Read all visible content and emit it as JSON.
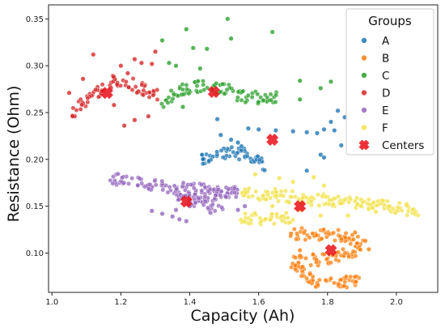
{
  "chart_data": {
    "type": "scatter",
    "title": "",
    "xlabel": "Capacity (Ah)",
    "ylabel": "Resistance (Ohm)",
    "xlim": [
      0.99,
      2.12
    ],
    "ylim": [
      0.058,
      0.365
    ],
    "xticks": [
      1.0,
      1.2,
      1.4,
      1.6,
      1.8,
      2.0
    ],
    "yticks": [
      0.1,
      0.15,
      0.2,
      0.25,
      0.3,
      0.35
    ],
    "xtick_labels": [
      "1.0",
      "1.2",
      "1.4",
      "1.6",
      "1.8",
      "2.0"
    ],
    "ytick_labels": [
      "0.10",
      "0.15",
      "0.20",
      "0.25",
      "0.30",
      "0.35"
    ],
    "grid": false,
    "legend": {
      "title": "Groups",
      "placement": "top-right"
    },
    "series": [
      {
        "name": "A",
        "color": "#1f77b4",
        "trend": [
          [
            1.43,
            0.198
          ],
          [
            1.48,
            0.207
          ],
          [
            1.54,
            0.207
          ],
          [
            1.59,
            0.203
          ],
          [
            1.62,
            0.188
          ]
        ],
        "points": [
          [
            1.48,
            0.243
          ],
          [
            1.49,
            0.226
          ],
          [
            1.52,
            0.221
          ],
          [
            1.54,
            0.218
          ],
          [
            1.55,
            0.214
          ],
          [
            1.57,
            0.233
          ],
          [
            1.6,
            0.232
          ],
          [
            1.65,
            0.231
          ],
          [
            1.7,
            0.23
          ],
          [
            1.74,
            0.229
          ],
          [
            1.77,
            0.228
          ],
          [
            1.79,
            0.232
          ],
          [
            1.81,
            0.24
          ],
          [
            1.83,
            0.252
          ],
          [
            1.74,
            0.188
          ],
          [
            1.78,
            0.205
          ],
          [
            1.79,
            0.202
          ],
          [
            1.84,
            0.215
          ],
          [
            1.82,
            0.231
          ],
          [
            1.85,
            0.245
          ]
        ]
      },
      {
        "name": "B",
        "color": "#ff7f0e",
        "trend": [
          [
            1.69,
            0.121
          ],
          [
            1.78,
            0.12
          ],
          [
            1.85,
            0.118
          ],
          [
            1.9,
            0.11
          ],
          [
            1.87,
            0.1
          ],
          [
            1.78,
            0.093
          ],
          [
            1.7,
            0.091
          ],
          [
            1.76,
            0.069
          ],
          [
            1.86,
            0.069
          ],
          [
            1.9,
            0.071
          ]
        ],
        "points": [
          [
            1.72,
            0.103
          ],
          [
            1.72,
            0.097
          ],
          [
            1.92,
            0.104
          ],
          [
            1.91,
            0.113
          ],
          [
            1.88,
            0.122
          ]
        ]
      },
      {
        "name": "C",
        "color": "#2ca02c",
        "trend": [
          [
            1.32,
            0.262
          ],
          [
            1.38,
            0.274
          ],
          [
            1.44,
            0.279
          ],
          [
            1.5,
            0.275
          ],
          [
            1.55,
            0.268
          ],
          [
            1.6,
            0.266
          ],
          [
            1.66,
            0.266
          ]
        ],
        "points": [
          [
            1.32,
            0.327
          ],
          [
            1.34,
            0.303
          ],
          [
            1.36,
            0.3
          ],
          [
            1.39,
            0.339
          ],
          [
            1.41,
            0.319
          ],
          [
            1.43,
            0.297
          ],
          [
            1.45,
            0.318
          ],
          [
            1.51,
            0.35
          ],
          [
            1.52,
            0.329
          ],
          [
            1.64,
            0.336
          ],
          [
            1.72,
            0.284
          ],
          [
            1.78,
            0.276
          ],
          [
            1.81,
            0.283
          ],
          [
            1.72,
            0.264
          ],
          [
            1.38,
            0.256
          ]
        ]
      },
      {
        "name": "D",
        "color": "#d62728",
        "trend": [
          [
            1.06,
            0.25
          ],
          [
            1.1,
            0.262
          ],
          [
            1.14,
            0.275
          ],
          [
            1.18,
            0.283
          ],
          [
            1.22,
            0.282
          ],
          [
            1.26,
            0.276
          ],
          [
            1.31,
            0.268
          ]
        ],
        "points": [
          [
            1.05,
            0.271
          ],
          [
            1.06,
            0.246
          ],
          [
            1.09,
            0.286
          ],
          [
            1.12,
            0.312
          ],
          [
            1.18,
            0.258
          ],
          [
            1.2,
            0.3
          ],
          [
            1.22,
            0.292
          ],
          [
            1.24,
            0.307
          ],
          [
            1.26,
            0.303
          ],
          [
            1.29,
            0.302
          ],
          [
            1.3,
            0.315
          ],
          [
            1.21,
            0.236
          ],
          [
            1.24,
            0.242
          ],
          [
            1.28,
            0.246
          ]
        ]
      },
      {
        "name": "E",
        "color": "#9467bd",
        "trend": [
          [
            1.17,
            0.18
          ],
          [
            1.24,
            0.175
          ],
          [
            1.32,
            0.171
          ],
          [
            1.4,
            0.169
          ],
          [
            1.48,
            0.166
          ],
          [
            1.54,
            0.165
          ],
          [
            1.36,
            0.158
          ],
          [
            1.44,
            0.154
          ],
          [
            1.5,
            0.15
          ]
        ],
        "points": [
          [
            1.29,
            0.145
          ],
          [
            1.32,
            0.142
          ],
          [
            1.35,
            0.139
          ],
          [
            1.37,
            0.136
          ],
          [
            1.39,
            0.134
          ],
          [
            1.36,
            0.146
          ],
          [
            1.4,
            0.15
          ],
          [
            1.46,
            0.143
          ],
          [
            1.54,
            0.146
          ],
          [
            1.56,
            0.15
          ]
        ]
      },
      {
        "name": "F",
        "color": "#f2e24a",
        "trend": [
          [
            1.55,
            0.163
          ],
          [
            1.64,
            0.162
          ],
          [
            1.74,
            0.158
          ],
          [
            1.84,
            0.155
          ],
          [
            1.92,
            0.152
          ],
          [
            2.0,
            0.148
          ],
          [
            2.06,
            0.145
          ],
          [
            1.55,
            0.137
          ],
          [
            1.62,
            0.136
          ],
          [
            1.7,
            0.138
          ]
        ],
        "points": [
          [
            1.59,
            0.184
          ],
          [
            1.66,
            0.18
          ],
          [
            1.7,
            0.176
          ],
          [
            1.76,
            0.181
          ],
          [
            1.79,
            0.172
          ],
          [
            1.64,
            0.15
          ],
          [
            1.72,
            0.146
          ],
          [
            1.78,
            0.14
          ],
          [
            1.86,
            0.14
          ],
          [
            1.94,
            0.144
          ],
          [
            1.98,
            0.15
          ],
          [
            2.03,
            0.151
          ]
        ]
      }
    ],
    "centers": {
      "name": "Centers",
      "color": "#e8141e",
      "points": [
        [
          1.47,
          0.272
        ],
        [
          1.64,
          0.221
        ],
        [
          1.16,
          0.271
        ],
        [
          1.39,
          0.155
        ],
        [
          1.72,
          0.15
        ],
        [
          1.81,
          0.103
        ]
      ]
    }
  }
}
